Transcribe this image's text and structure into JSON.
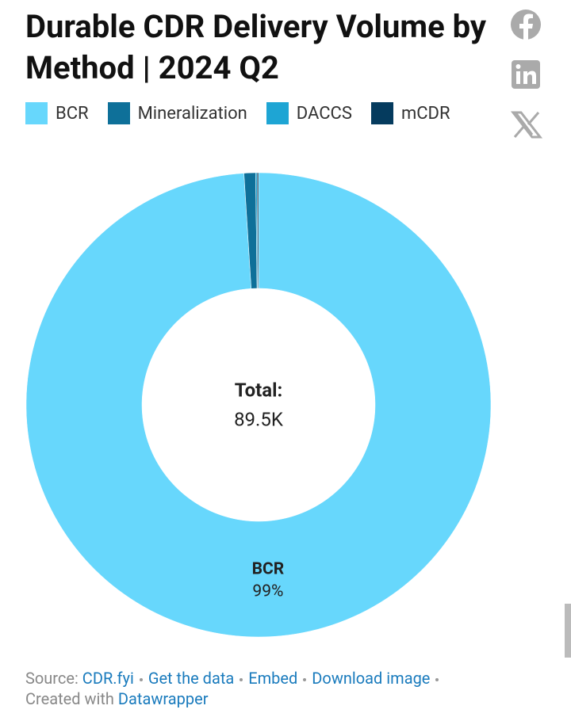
{
  "chart_data": {
    "type": "donut",
    "title": "Durable CDR Delivery Volume by Method | 2024 Q2",
    "categories": [
      "BCR",
      "Mineralization",
      "DACCS",
      "mCDR"
    ],
    "values": [
      99.0,
      0.8,
      0.1,
      0.1
    ],
    "value_labels": [
      "99%",
      null,
      null,
      null
    ],
    "colors": [
      "#67d7fc",
      "#0e7099",
      "#1ea5d4",
      "#053b5e"
    ],
    "total": {
      "value": 89500,
      "title": "Total:",
      "label": "89.5K"
    }
  },
  "footer": {
    "source_label": "Source:",
    "source": "CDR.fyi",
    "links": [
      "Get the data",
      "Embed",
      "Download image"
    ],
    "created_label": "Created with",
    "tool": "Datawrapper"
  }
}
